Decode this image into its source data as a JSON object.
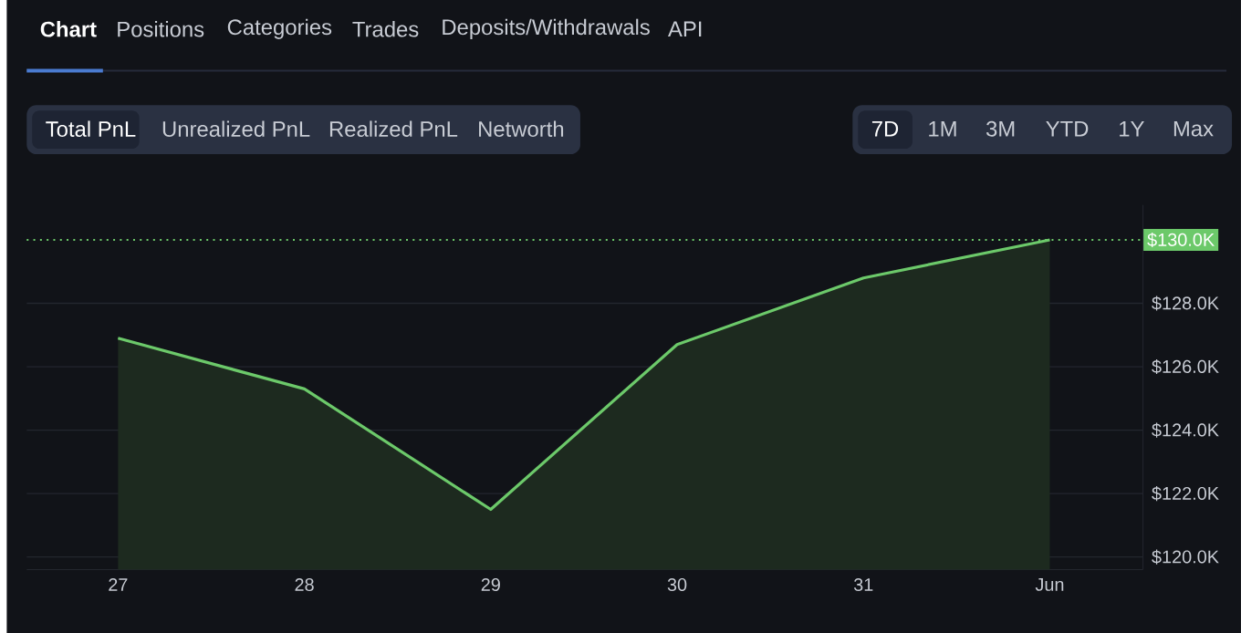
{
  "chart_data": {
    "type": "area",
    "categories": [
      "27",
      "28",
      "29",
      "30",
      "31",
      "Jun"
    ],
    "series": [
      {
        "color": "#6cc96a",
        "values": [
          126900,
          125300,
          121500,
          126700,
          128800,
          130000
        ]
      }
    ],
    "ylim": [
      119600,
      131100
    ],
    "yticks": [
      {
        "value": 120000,
        "label": "$120.0K"
      },
      {
        "value": 122000,
        "label": "$122.0K"
      },
      {
        "value": 124000,
        "label": "$124.0K"
      },
      {
        "value": 126000,
        "label": "$126.0K"
      },
      {
        "value": 128000,
        "label": "$128.0K"
      }
    ],
    "grid": "y",
    "ref_lines": [
      {
        "axis": "y",
        "value": 130000,
        "label": "$130.0K",
        "color": "#6cc96a",
        "line_style": "dotted"
      }
    ],
    "annotations": [
      "Chart",
      "Positions",
      "Categories",
      "Trades",
      "Deposits/Withdrawals",
      "API",
      "Total PnL",
      "Unrealized PnL",
      "Realized PnL",
      "Networth",
      "7D",
      "1M",
      "3M",
      "YTD",
      "1Y",
      "Max"
    ]
  }
}
